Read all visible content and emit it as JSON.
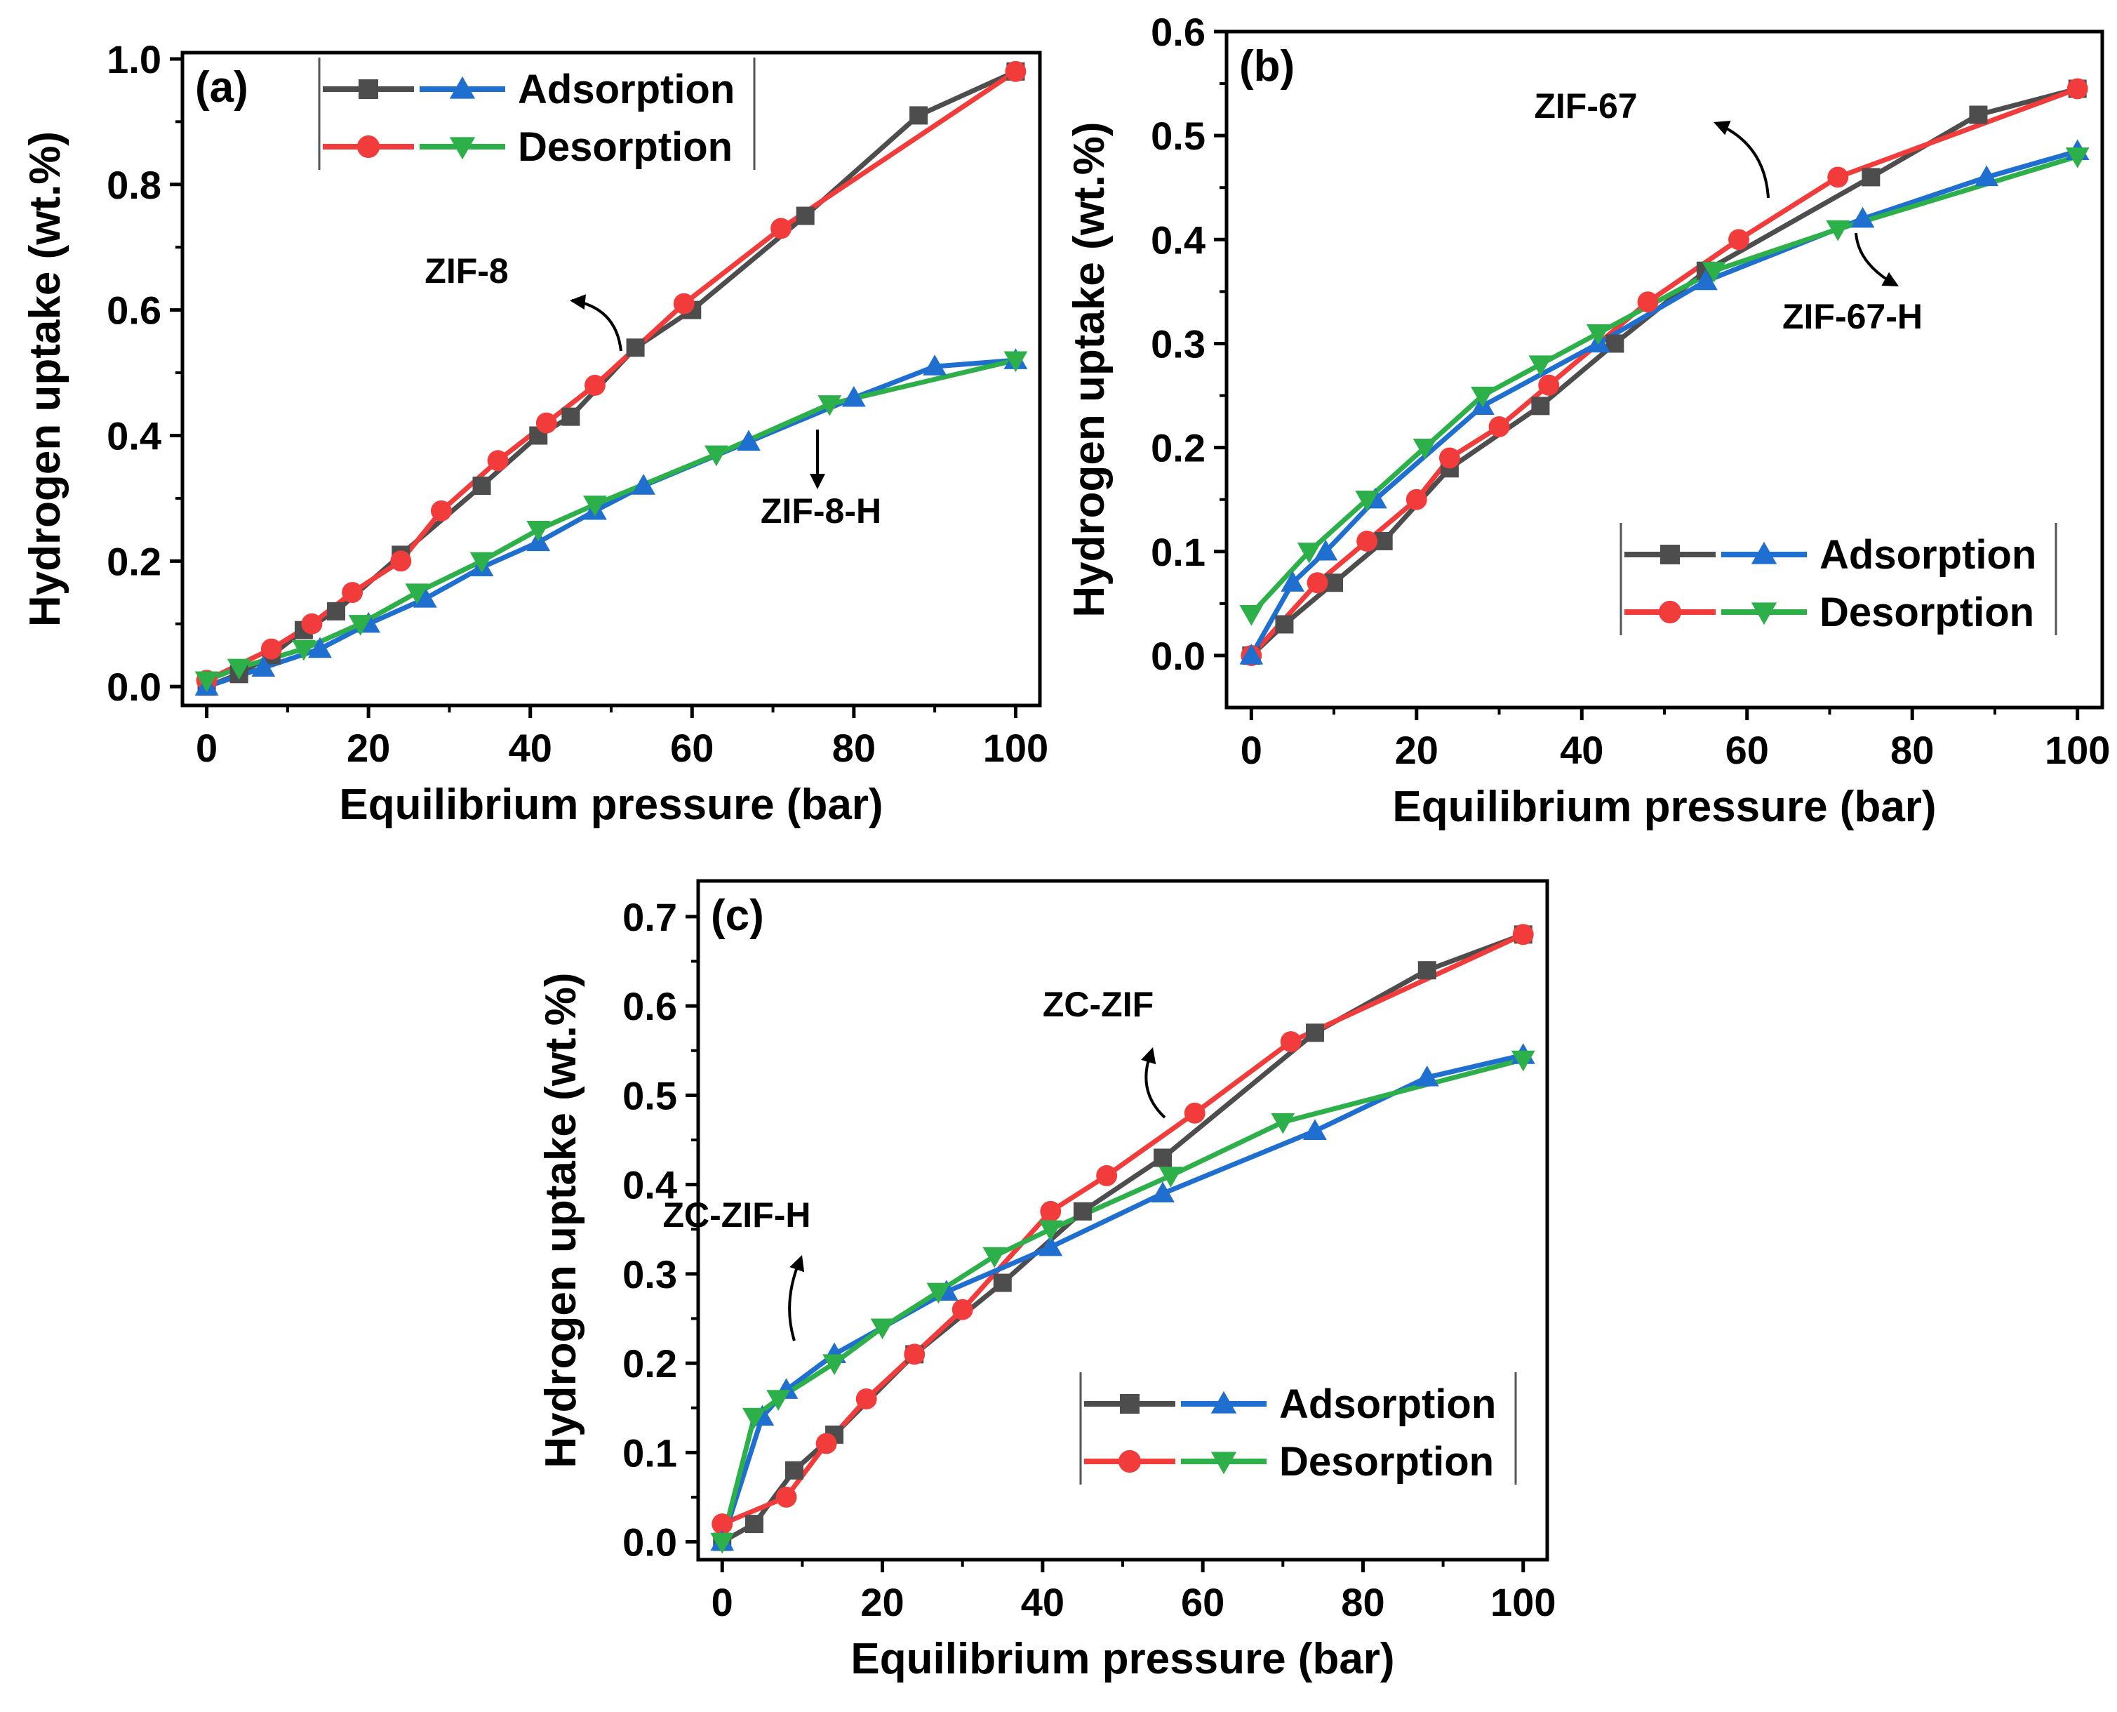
{
  "chart_data": [
    {
      "type": "line",
      "panel_label": "(a)",
      "xlabel": "Equilibrium pressure (bar)",
      "ylabel": "Hydrogen uptake (wt.%)",
      "xlim": [
        -3,
        103
      ],
      "ylim": [
        -0.03,
        1.01
      ],
      "xticks": [
        0,
        20,
        40,
        60,
        80,
        100
      ],
      "yticks": [
        0.0,
        0.2,
        0.4,
        0.6,
        0.8,
        1.0
      ],
      "tick_decimals": 1,
      "legend": {
        "position": "top-left",
        "labels": [
          "Adsorption",
          "Desorption"
        ]
      },
      "series": [
        {
          "name": "ZIF-8 adsorption",
          "color": "#4d4d4d",
          "marker": "square",
          "x": [
            0,
            4,
            8,
            12,
            16,
            24,
            34,
            41,
            45,
            53,
            60,
            74,
            88,
            100
          ],
          "y": [
            0.0,
            0.02,
            0.05,
            0.09,
            0.12,
            0.21,
            0.32,
            0.4,
            0.43,
            0.54,
            0.6,
            0.75,
            0.91,
            0.98
          ]
        },
        {
          "name": "ZIF-8 desorption",
          "color": "#f23c3c",
          "marker": "circle",
          "x": [
            0,
            8,
            13,
            18,
            24,
            29,
            36,
            42,
            48,
            59,
            71,
            100
          ],
          "y": [
            0.01,
            0.06,
            0.1,
            0.15,
            0.2,
            0.28,
            0.36,
            0.42,
            0.48,
            0.61,
            0.73,
            0.98
          ]
        },
        {
          "name": "ZIF-8-H adsorption",
          "color": "#1f6fd1",
          "marker": "triangle-up",
          "x": [
            0,
            7,
            14,
            20,
            27,
            34,
            41,
            48,
            54,
            67,
            80,
            90,
            100
          ],
          "y": [
            0.0,
            0.03,
            0.06,
            0.1,
            0.14,
            0.19,
            0.23,
            0.28,
            0.32,
            0.39,
            0.46,
            0.51,
            0.52
          ]
        },
        {
          "name": "ZIF-8-H desorption",
          "color": "#2db04a",
          "marker": "triangle-down",
          "x": [
            0,
            4,
            12,
            19,
            26,
            34,
            41,
            48,
            63,
            77,
            100
          ],
          "y": [
            0.01,
            0.03,
            0.06,
            0.1,
            0.15,
            0.2,
            0.25,
            0.29,
            0.37,
            0.45,
            0.52
          ]
        }
      ],
      "annotations": [
        {
          "text": "ZIF-8",
          "x": 46,
          "y": 0.64
        },
        {
          "text": "ZIF-8-H",
          "x": 85,
          "y": 0.24
        }
      ]
    },
    {
      "type": "line",
      "panel_label": "(b)",
      "xlabel": "Equilibrium pressure (bar)",
      "ylabel": "Hydrogen uptake (wt.%)",
      "xlim": [
        -3,
        103
      ],
      "ylim": [
        -0.05,
        0.6
      ],
      "xticks": [
        0,
        20,
        40,
        60,
        80,
        100
      ],
      "yticks": [
        0.0,
        0.1,
        0.2,
        0.3,
        0.4,
        0.5,
        0.6
      ],
      "tick_decimals": 1,
      "legend": {
        "position": "bottom-right",
        "labels": [
          "Adsorption",
          "Desorption"
        ]
      },
      "series": [
        {
          "name": "ZIF-67 adsorption",
          "color": "#4d4d4d",
          "marker": "square",
          "x": [
            0,
            4,
            10,
            16,
            24,
            35,
            44,
            55,
            75,
            88,
            100
          ],
          "y": [
            0.0,
            0.03,
            0.07,
            0.11,
            0.18,
            0.24,
            0.3,
            0.37,
            0.46,
            0.52,
            0.545
          ]
        },
        {
          "name": "ZIF-67 desorption",
          "color": "#f23c3c",
          "marker": "circle",
          "x": [
            0,
            8,
            14,
            20,
            24,
            30,
            36,
            48,
            59,
            71,
            100
          ],
          "y": [
            0.0,
            0.07,
            0.11,
            0.15,
            0.19,
            0.22,
            0.26,
            0.34,
            0.4,
            0.46,
            0.545
          ]
        },
        {
          "name": "ZIF-67-H adsorption",
          "color": "#1f6fd1",
          "marker": "triangle-up",
          "x": [
            0,
            5,
            9,
            15,
            28,
            42,
            55,
            74,
            89,
            100
          ],
          "y": [
            0.0,
            0.07,
            0.1,
            0.15,
            0.24,
            0.3,
            0.36,
            0.42,
            0.46,
            0.485
          ]
        },
        {
          "name": "ZIF-67-H desorption",
          "color": "#2db04a",
          "marker": "triangle-down",
          "x": [
            0,
            7,
            14,
            21,
            28,
            35,
            42,
            56,
            71,
            100
          ],
          "y": [
            0.04,
            0.1,
            0.15,
            0.2,
            0.25,
            0.28,
            0.31,
            0.37,
            0.41,
            0.48
          ]
        }
      ],
      "annotations": [
        {
          "text": "ZIF-67",
          "x": 55,
          "y": 0.52
        },
        {
          "text": "ZIF-67-H",
          "x": 86,
          "y": 0.315
        }
      ]
    },
    {
      "type": "line",
      "panel_label": "(c)",
      "xlabel": "Equilibrium pressure (bar)",
      "ylabel": "Hydrogen uptake (wt.%)",
      "xlim": [
        -3,
        103
      ],
      "ylim": [
        -0.02,
        0.74
      ],
      "xticks": [
        0,
        20,
        40,
        60,
        80,
        100
      ],
      "yticks": [
        0.0,
        0.1,
        0.2,
        0.3,
        0.4,
        0.5,
        0.6,
        0.7
      ],
      "tick_decimals": 1,
      "legend": {
        "position": "bottom-right",
        "labels": [
          "Adsorption",
          "Desorption"
        ]
      },
      "series": [
        {
          "name": "ZC-ZIF adsorption",
          "color": "#4d4d4d",
          "marker": "square",
          "x": [
            0,
            4,
            9,
            14,
            24,
            35,
            45,
            55,
            74,
            88,
            100
          ],
          "y": [
            0.0,
            0.02,
            0.08,
            0.12,
            0.21,
            0.29,
            0.37,
            0.43,
            0.57,
            0.64,
            0.68
          ]
        },
        {
          "name": "ZC-ZIF desorption",
          "color": "#f23c3c",
          "marker": "circle",
          "x": [
            0,
            8,
            13,
            18,
            24,
            30,
            41,
            48,
            59,
            71,
            100
          ],
          "y": [
            0.02,
            0.05,
            0.11,
            0.16,
            0.21,
            0.26,
            0.37,
            0.41,
            0.48,
            0.56,
            0.68
          ]
        },
        {
          "name": "ZC-ZIF-H adsorption",
          "color": "#1f6fd1",
          "marker": "triangle-up",
          "x": [
            0,
            5,
            8,
            14,
            28,
            41,
            55,
            74,
            88,
            100
          ],
          "y": [
            0.0,
            0.14,
            0.17,
            0.21,
            0.28,
            0.33,
            0.39,
            0.46,
            0.52,
            0.545
          ]
        },
        {
          "name": "ZC-ZIF-H desorption",
          "color": "#2db04a",
          "marker": "triangle-down",
          "x": [
            0,
            4,
            7,
            14,
            20,
            27,
            34,
            41,
            56,
            70,
            100
          ],
          "y": [
            0.0,
            0.14,
            0.16,
            0.2,
            0.24,
            0.28,
            0.32,
            0.35,
            0.41,
            0.47,
            0.54
          ]
        }
      ],
      "annotations": [
        {
          "text": "ZC-ZIF",
          "x": 60,
          "y": 0.595
        },
        {
          "text": "ZC-ZIF-H",
          "x": 12,
          "y": 0.35
        }
      ]
    }
  ]
}
